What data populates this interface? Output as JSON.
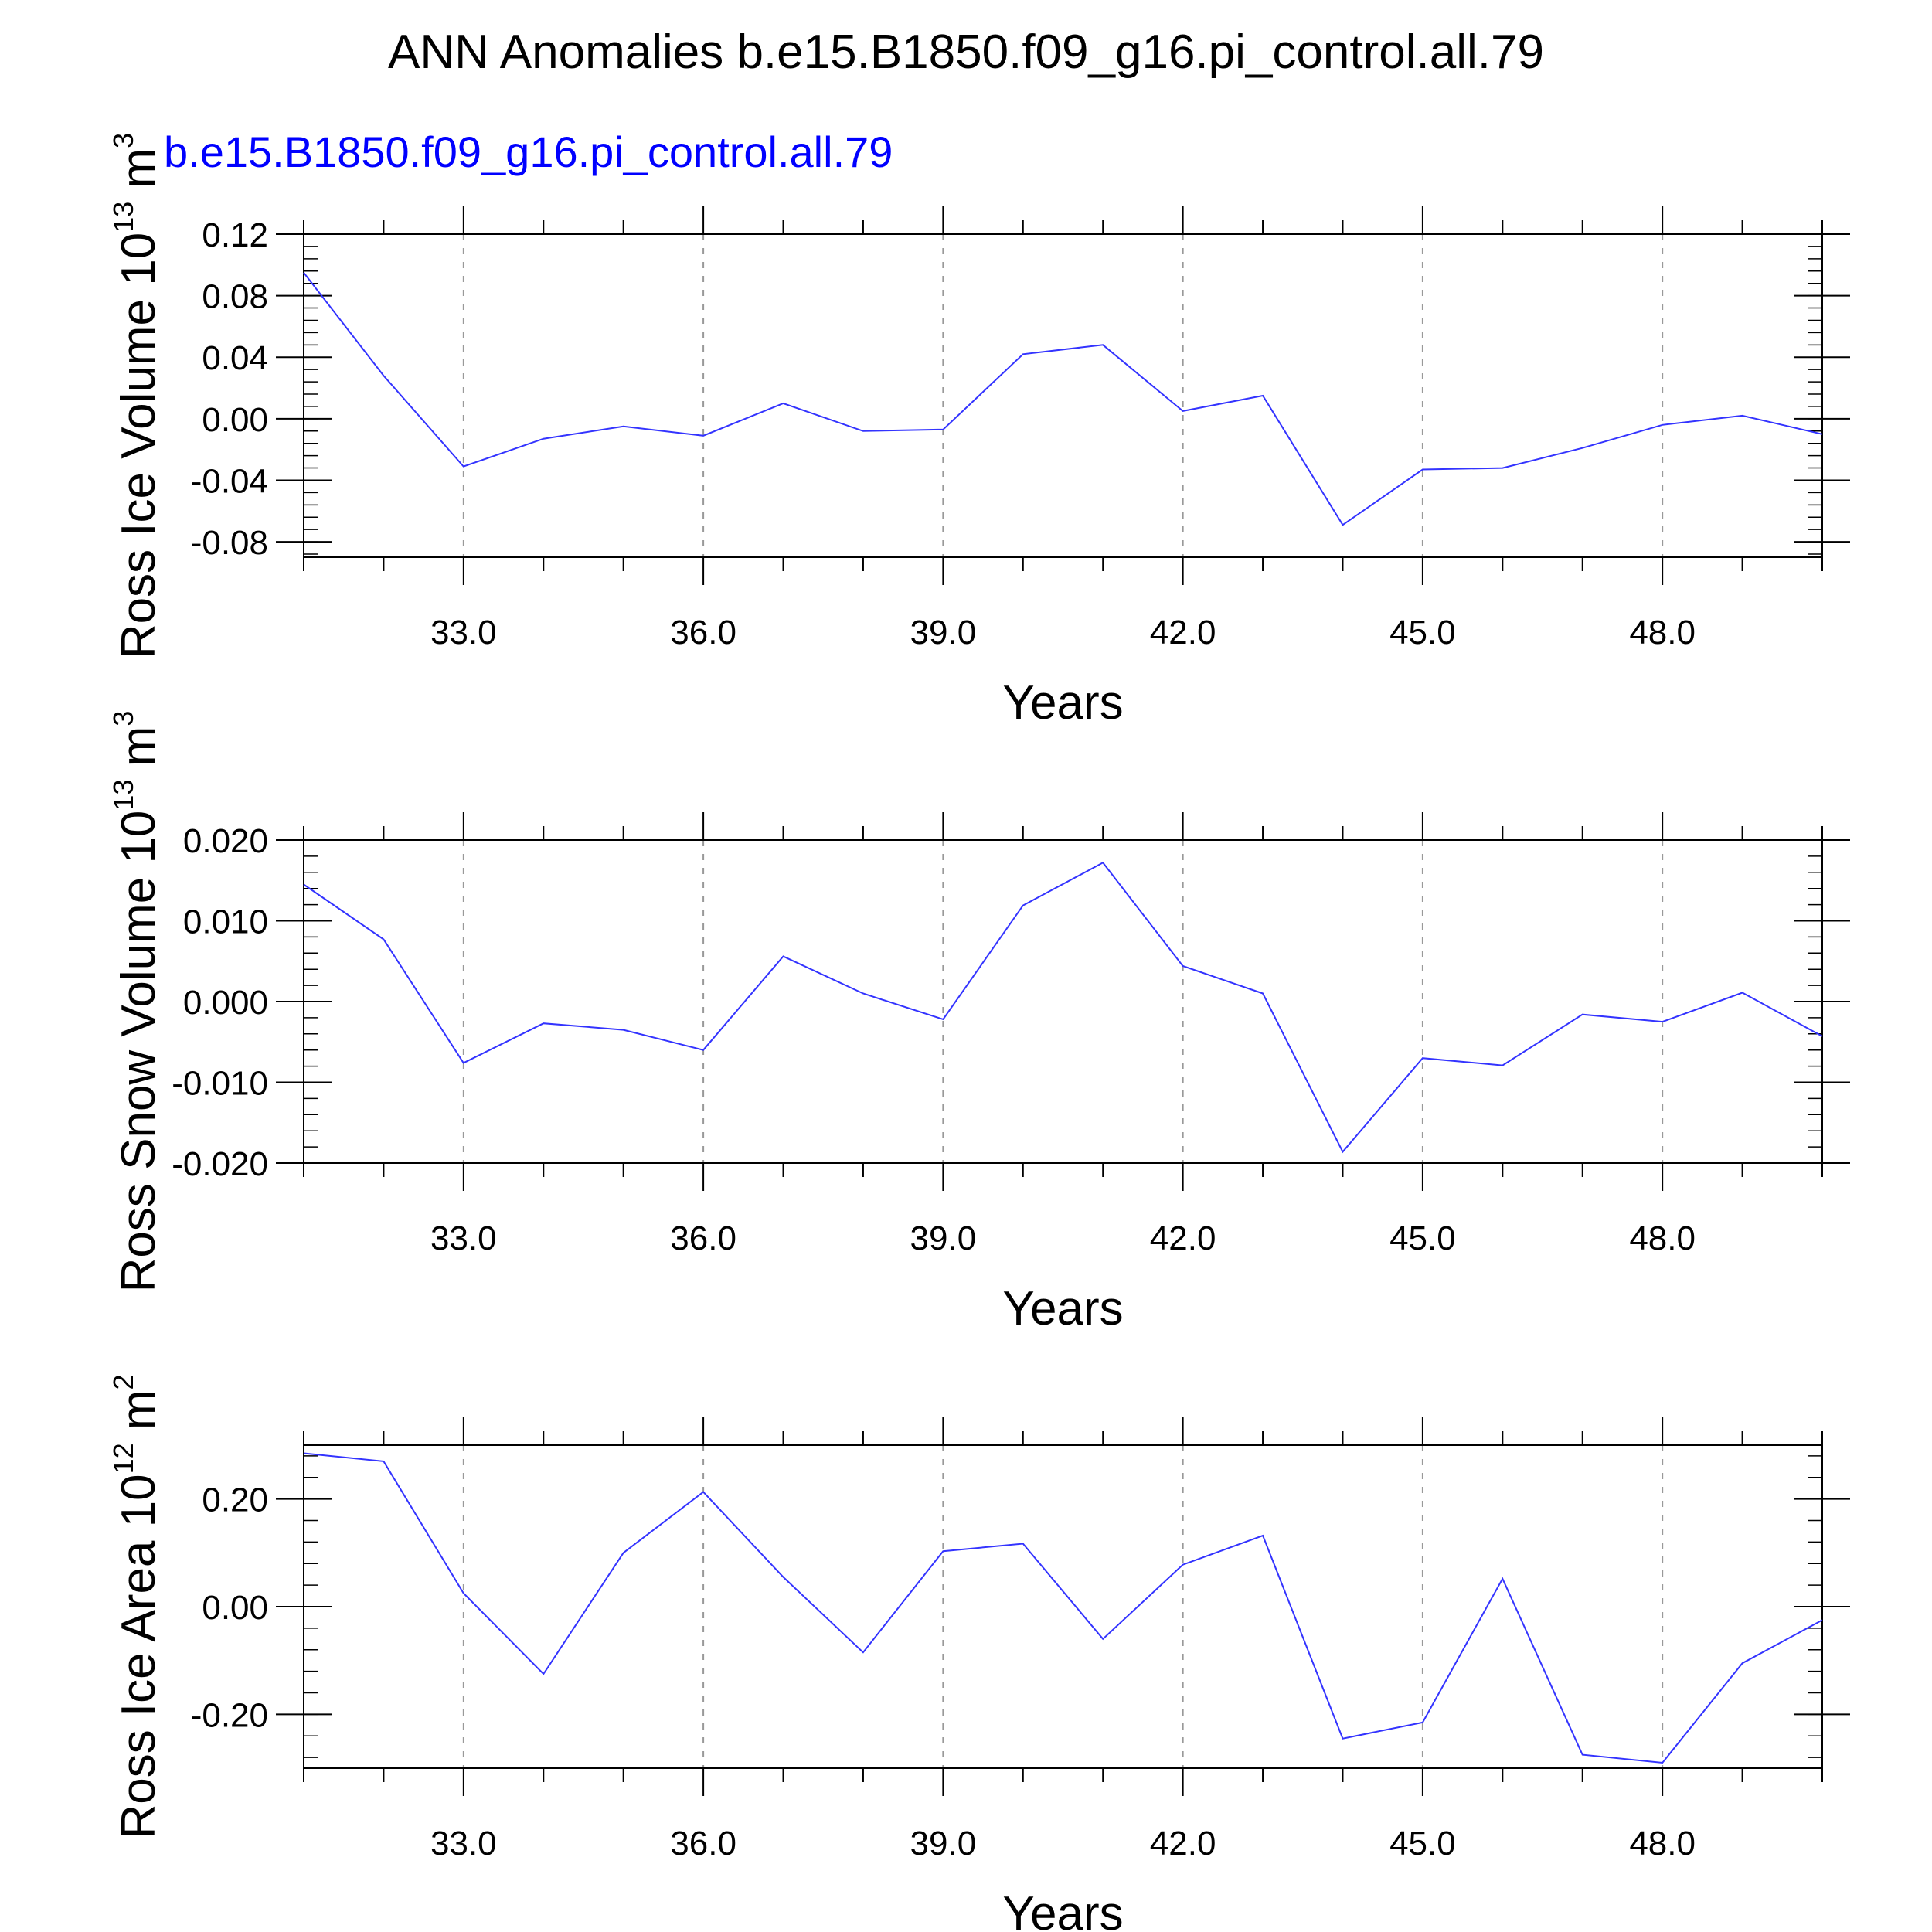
{
  "page": {
    "title": "ANN Anomalies b.e15.B1850.f09_g16.pi_control.all.79",
    "case_label": "b.e15.B1850.f09_g16.pi_control.all.79",
    "case_color": "#0000ff"
  },
  "colors": {
    "series": "#3333ff",
    "axis": "#000000",
    "grid": "#999999"
  },
  "chart_data": [
    {
      "type": "line",
      "title": "",
      "xlabel": "Years",
      "ylabel": "Ross Ice Volume 10",
      "ylabel_exp": "13",
      "ylabel_unit": "m",
      "ylabel_unit_exp": "3",
      "xlim": [
        31.0,
        50.0
      ],
      "ylim": [
        -0.09,
        0.12
      ],
      "xticks": [
        33,
        36,
        39,
        42,
        45,
        48
      ],
      "xtick_labels": [
        "33.0",
        "36.0",
        "39.0",
        "42.0",
        "45.0",
        "48.0"
      ],
      "yticks": [
        0.12,
        0.08,
        0.04,
        0.0,
        -0.04,
        -0.08
      ],
      "ytick_labels": [
        "0.12",
        "0.08",
        "0.04",
        "0.00",
        "-0.04",
        "-0.08"
      ],
      "grid": "vertical-dashed",
      "series": [
        {
          "x": [
            31,
            32,
            33,
            34,
            35,
            36,
            37,
            38,
            39,
            40,
            41,
            42,
            43,
            44,
            45,
            46,
            47,
            48,
            49,
            50
          ],
          "values": [
            0.095,
            0.028,
            -0.031,
            -0.013,
            -0.005,
            -0.011,
            0.01,
            -0.008,
            -0.007,
            0.042,
            0.048,
            0.005,
            0.015,
            -0.069,
            -0.033,
            -0.032,
            -0.019,
            -0.004,
            0.002,
            -0.01
          ]
        }
      ]
    },
    {
      "type": "line",
      "title": "",
      "xlabel": "Years",
      "ylabel": "Ross Snow Volume 10",
      "ylabel_exp": "13",
      "ylabel_unit": "m",
      "ylabel_unit_exp": "3",
      "xlim": [
        31.0,
        50.0
      ],
      "ylim": [
        -0.02,
        0.02
      ],
      "xticks": [
        33,
        36,
        39,
        42,
        45,
        48
      ],
      "xtick_labels": [
        "33.0",
        "36.0",
        "39.0",
        "42.0",
        "45.0",
        "48.0"
      ],
      "yticks": [
        0.02,
        0.01,
        0.0,
        -0.01,
        -0.02
      ],
      "ytick_labels": [
        "0.020",
        "0.010",
        "0.000",
        "-0.010",
        "-0.020"
      ],
      "grid": "vertical-dashed",
      "series": [
        {
          "x": [
            31,
            32,
            33,
            34,
            35,
            36,
            37,
            38,
            39,
            40,
            41,
            42,
            43,
            44,
            45,
            46,
            47,
            48,
            49,
            50
          ],
          "values": [
            0.0145,
            0.0077,
            -0.0076,
            -0.0027,
            -0.0035,
            -0.006,
            0.0056,
            0.001,
            -0.0022,
            0.0119,
            0.0172,
            0.0044,
            0.001,
            -0.0186,
            -0.007,
            -0.0079,
            -0.0016,
            -0.0025,
            0.0011,
            -0.0043
          ]
        }
      ]
    },
    {
      "type": "line",
      "title": "",
      "xlabel": "Years",
      "ylabel": "Ross Ice Area 10",
      "ylabel_exp": "12",
      "ylabel_unit": "m",
      "ylabel_unit_exp": "2",
      "xlim": [
        31.0,
        50.0
      ],
      "ylim": [
        -0.3,
        0.3
      ],
      "xticks": [
        33,
        36,
        39,
        42,
        45,
        48
      ],
      "xtick_labels": [
        "33.0",
        "36.0",
        "39.0",
        "42.0",
        "45.0",
        "48.0"
      ],
      "yticks": [
        0.2,
        0.0,
        -0.2
      ],
      "ytick_labels": [
        "0.20",
        "0.00",
        "-0.20"
      ],
      "grid": "vertical-dashed",
      "series": [
        {
          "x": [
            31,
            32,
            33,
            34,
            35,
            36,
            37,
            38,
            39,
            40,
            41,
            42,
            43,
            44,
            45,
            46,
            47,
            48,
            49,
            50
          ],
          "values": [
            0.285,
            0.27,
            0.025,
            -0.125,
            0.1,
            0.213,
            0.055,
            -0.085,
            0.103,
            0.117,
            -0.06,
            0.078,
            0.132,
            -0.245,
            -0.215,
            0.052,
            -0.275,
            -0.29,
            -0.105,
            -0.025
          ]
        }
      ]
    }
  ]
}
